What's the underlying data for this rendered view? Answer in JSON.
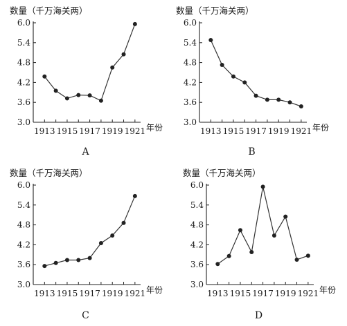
{
  "chart_data": [
    {
      "type": "line",
      "panel_label": "A",
      "ylabel": "数量（千万海关两）",
      "xlabel_unit": "年份",
      "y_ticks": [
        "3.0",
        "3.6",
        "4.2",
        "4.8",
        "5.4",
        "6.0"
      ],
      "x_ticks": [
        "1913",
        "1915",
        "1917",
        "1919",
        "1921"
      ],
      "ylim": [
        3.0,
        6.0
      ],
      "xlim": [
        1912,
        1921.5
      ],
      "grid": false,
      "x": [
        1913,
        1914,
        1915,
        1916,
        1917,
        1918,
        1919,
        1920,
        1921
      ],
      "values": [
        4.38,
        3.95,
        3.72,
        3.82,
        3.81,
        3.65,
        4.65,
        5.05,
        5.96
      ]
    },
    {
      "type": "line",
      "panel_label": "B",
      "ylabel": "数量（千万海关两）",
      "xlabel_unit": "年份",
      "y_ticks": [
        "3.0",
        "3.6",
        "4.2",
        "4.8",
        "5.4",
        "6.0"
      ],
      "x_ticks": [
        "1913",
        "1915",
        "1917",
        "1919",
        "1921"
      ],
      "ylim": [
        3.0,
        6.0
      ],
      "xlim": [
        1912,
        1921.5
      ],
      "grid": false,
      "x": [
        1913,
        1914,
        1915,
        1916,
        1917,
        1918,
        1919,
        1920,
        1921
      ],
      "values": [
        5.48,
        4.73,
        4.38,
        4.2,
        3.8,
        3.68,
        3.68,
        3.6,
        3.48
      ]
    },
    {
      "type": "line",
      "panel_label": "C",
      "ylabel": "数量（千万海关两）",
      "xlabel_unit": "年份",
      "y_ticks": [
        "3.0",
        "3.6",
        "4.2",
        "4.8",
        "5.4",
        "6.0"
      ],
      "x_ticks": [
        "1913",
        "1915",
        "1917",
        "1919",
        "1921"
      ],
      "ylim": [
        3.0,
        6.0
      ],
      "xlim": [
        1912,
        1921.5
      ],
      "grid": false,
      "x": [
        1913,
        1914,
        1915,
        1916,
        1917,
        1918,
        1919,
        1920,
        1921
      ],
      "values": [
        3.56,
        3.65,
        3.74,
        3.74,
        3.8,
        4.25,
        4.48,
        4.86,
        5.67
      ]
    },
    {
      "type": "line",
      "panel_label": "D",
      "ylabel": "数量（千万海关两）",
      "xlabel_unit": "年份",
      "y_ticks": [
        "3.0",
        "3.6",
        "4.2",
        "4.8",
        "5.4",
        "6.0"
      ],
      "x_ticks": [
        "1913",
        "1915",
        "1917",
        "1919",
        "1921"
      ],
      "ylim": [
        3.0,
        6.0
      ],
      "xlim": [
        1912,
        1921.5
      ],
      "grid": false,
      "x": [
        1913,
        1914,
        1915,
        1916,
        1917,
        1918,
        1919,
        1920,
        1921
      ],
      "values": [
        3.62,
        3.86,
        4.64,
        3.98,
        5.95,
        4.48,
        5.05,
        3.75,
        3.87
      ]
    }
  ]
}
